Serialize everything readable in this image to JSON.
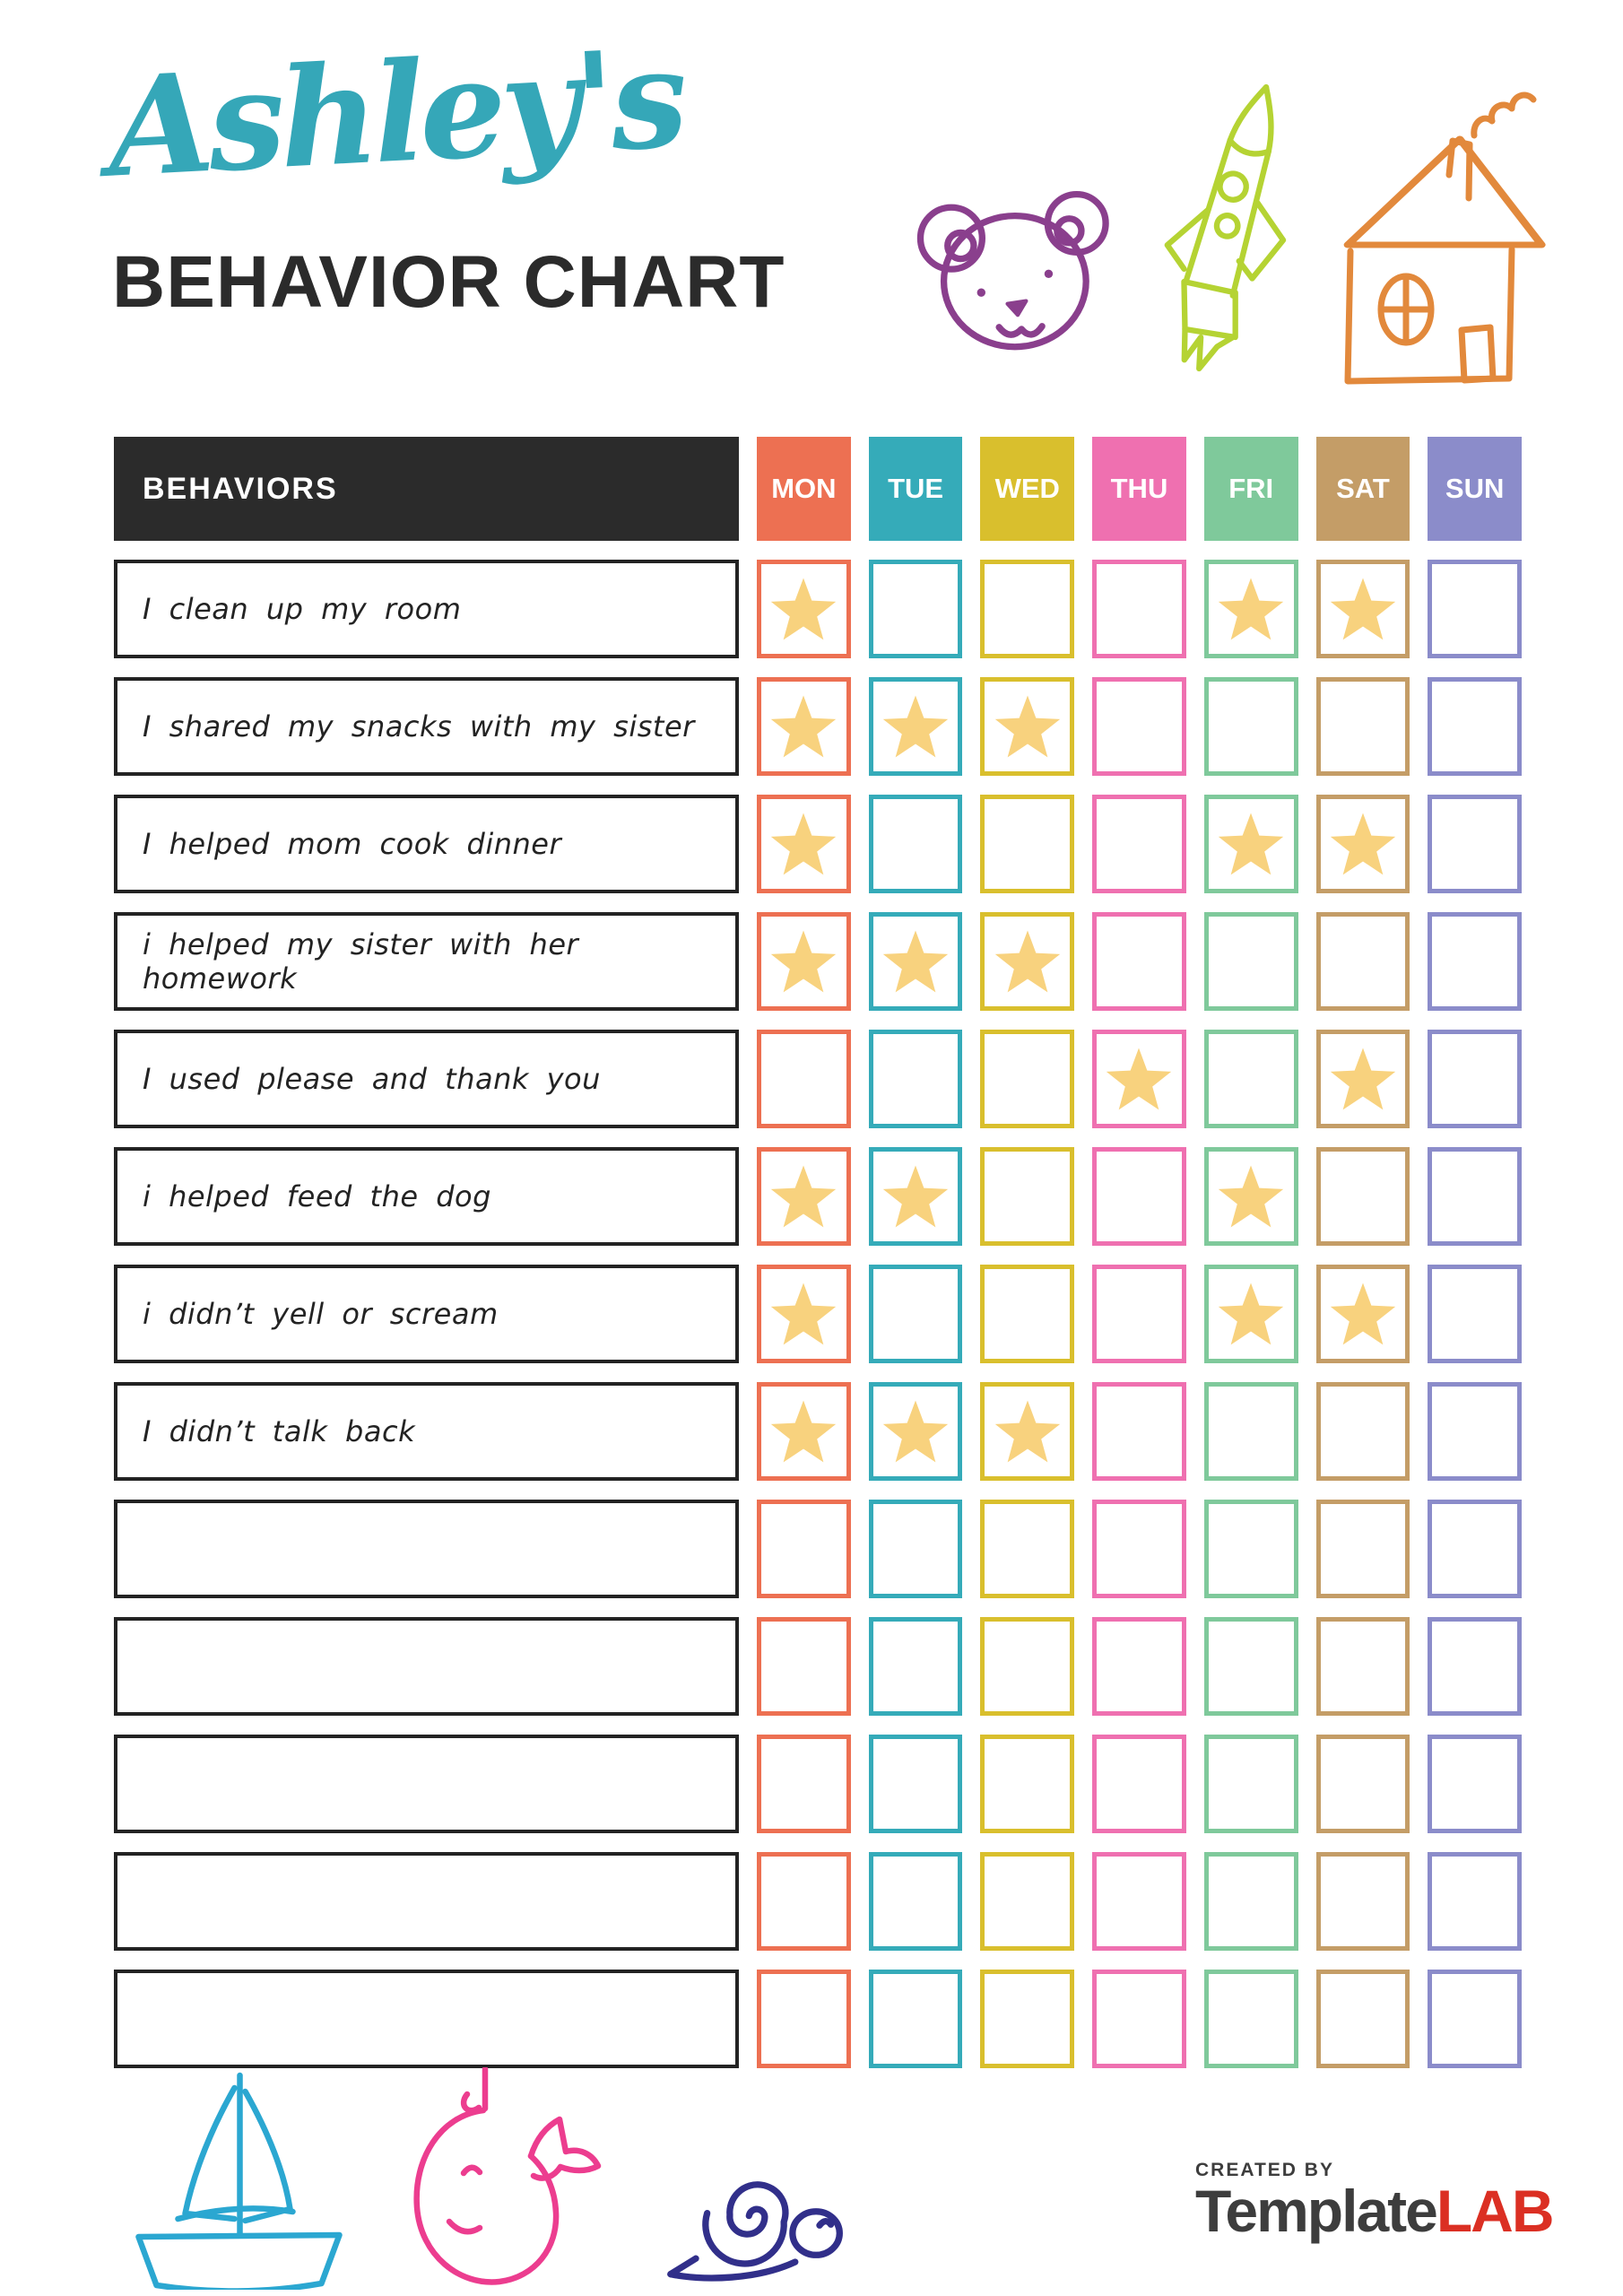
{
  "header": {
    "name": "Ashley's",
    "title": "BEHAVIOR CHART"
  },
  "colors": {
    "accent_teal": "#35A7B8",
    "text_dark": "#2b2b2b",
    "star": "#F8D27E",
    "bear_purple": "#8A3F8D",
    "rocket_green": "#B5D333",
    "house_orange": "#E2893C",
    "boat_blue": "#2BA7D1",
    "whale_pink": "#EC3D8F",
    "snail_navy": "#312F8A",
    "logo_red": "#DB2F23"
  },
  "icons": [
    "teddy-bear",
    "rocket",
    "house",
    "sailboat",
    "whale",
    "snail"
  ],
  "table": {
    "behaviors_header": "BEHAVIORS",
    "days": [
      {
        "label": "MON",
        "color": "#ED7052"
      },
      {
        "label": "TUE",
        "color": "#35ABB9"
      },
      {
        "label": "WED",
        "color": "#D9BF2D"
      },
      {
        "label": "THU",
        "color": "#EF70B0"
      },
      {
        "label": "FRI",
        "color": "#7FC99B"
      },
      {
        "label": "SAT",
        "color": "#C49D67"
      },
      {
        "label": "SUN",
        "color": "#8B8CCA"
      }
    ],
    "rows": [
      {
        "behavior": "I clean up my room",
        "stars": [
          1,
          0,
          0,
          0,
          1,
          1,
          0
        ]
      },
      {
        "behavior": "I shared my snacks with my sister",
        "stars": [
          1,
          1,
          1,
          0,
          0,
          0,
          0
        ]
      },
      {
        "behavior": "I helped mom cook dinner",
        "stars": [
          1,
          0,
          0,
          0,
          1,
          1,
          0
        ]
      },
      {
        "behavior": "i helped my sister with her homework",
        "stars": [
          1,
          1,
          1,
          0,
          0,
          0,
          0
        ]
      },
      {
        "behavior": "I used please and thank you",
        "stars": [
          0,
          0,
          0,
          1,
          0,
          1,
          0
        ]
      },
      {
        "behavior": "i helped feed the dog",
        "stars": [
          1,
          1,
          0,
          0,
          1,
          0,
          0
        ]
      },
      {
        "behavior": "i didn’t yell or scream",
        "stars": [
          1,
          0,
          0,
          0,
          1,
          1,
          0
        ]
      },
      {
        "behavior": "I didn’t talk back",
        "stars": [
          1,
          1,
          1,
          0,
          0,
          0,
          0
        ]
      },
      {
        "behavior": "",
        "stars": [
          0,
          0,
          0,
          0,
          0,
          0,
          0
        ]
      },
      {
        "behavior": "",
        "stars": [
          0,
          0,
          0,
          0,
          0,
          0,
          0
        ]
      },
      {
        "behavior": "",
        "stars": [
          0,
          0,
          0,
          0,
          0,
          0,
          0
        ]
      },
      {
        "behavior": "",
        "stars": [
          0,
          0,
          0,
          0,
          0,
          0,
          0
        ]
      },
      {
        "behavior": "",
        "stars": [
          0,
          0,
          0,
          0,
          0,
          0,
          0
        ]
      }
    ]
  },
  "footer": {
    "created_by": "CREATED BY",
    "brand_name": "Template",
    "brand_suffix": "LAB"
  }
}
